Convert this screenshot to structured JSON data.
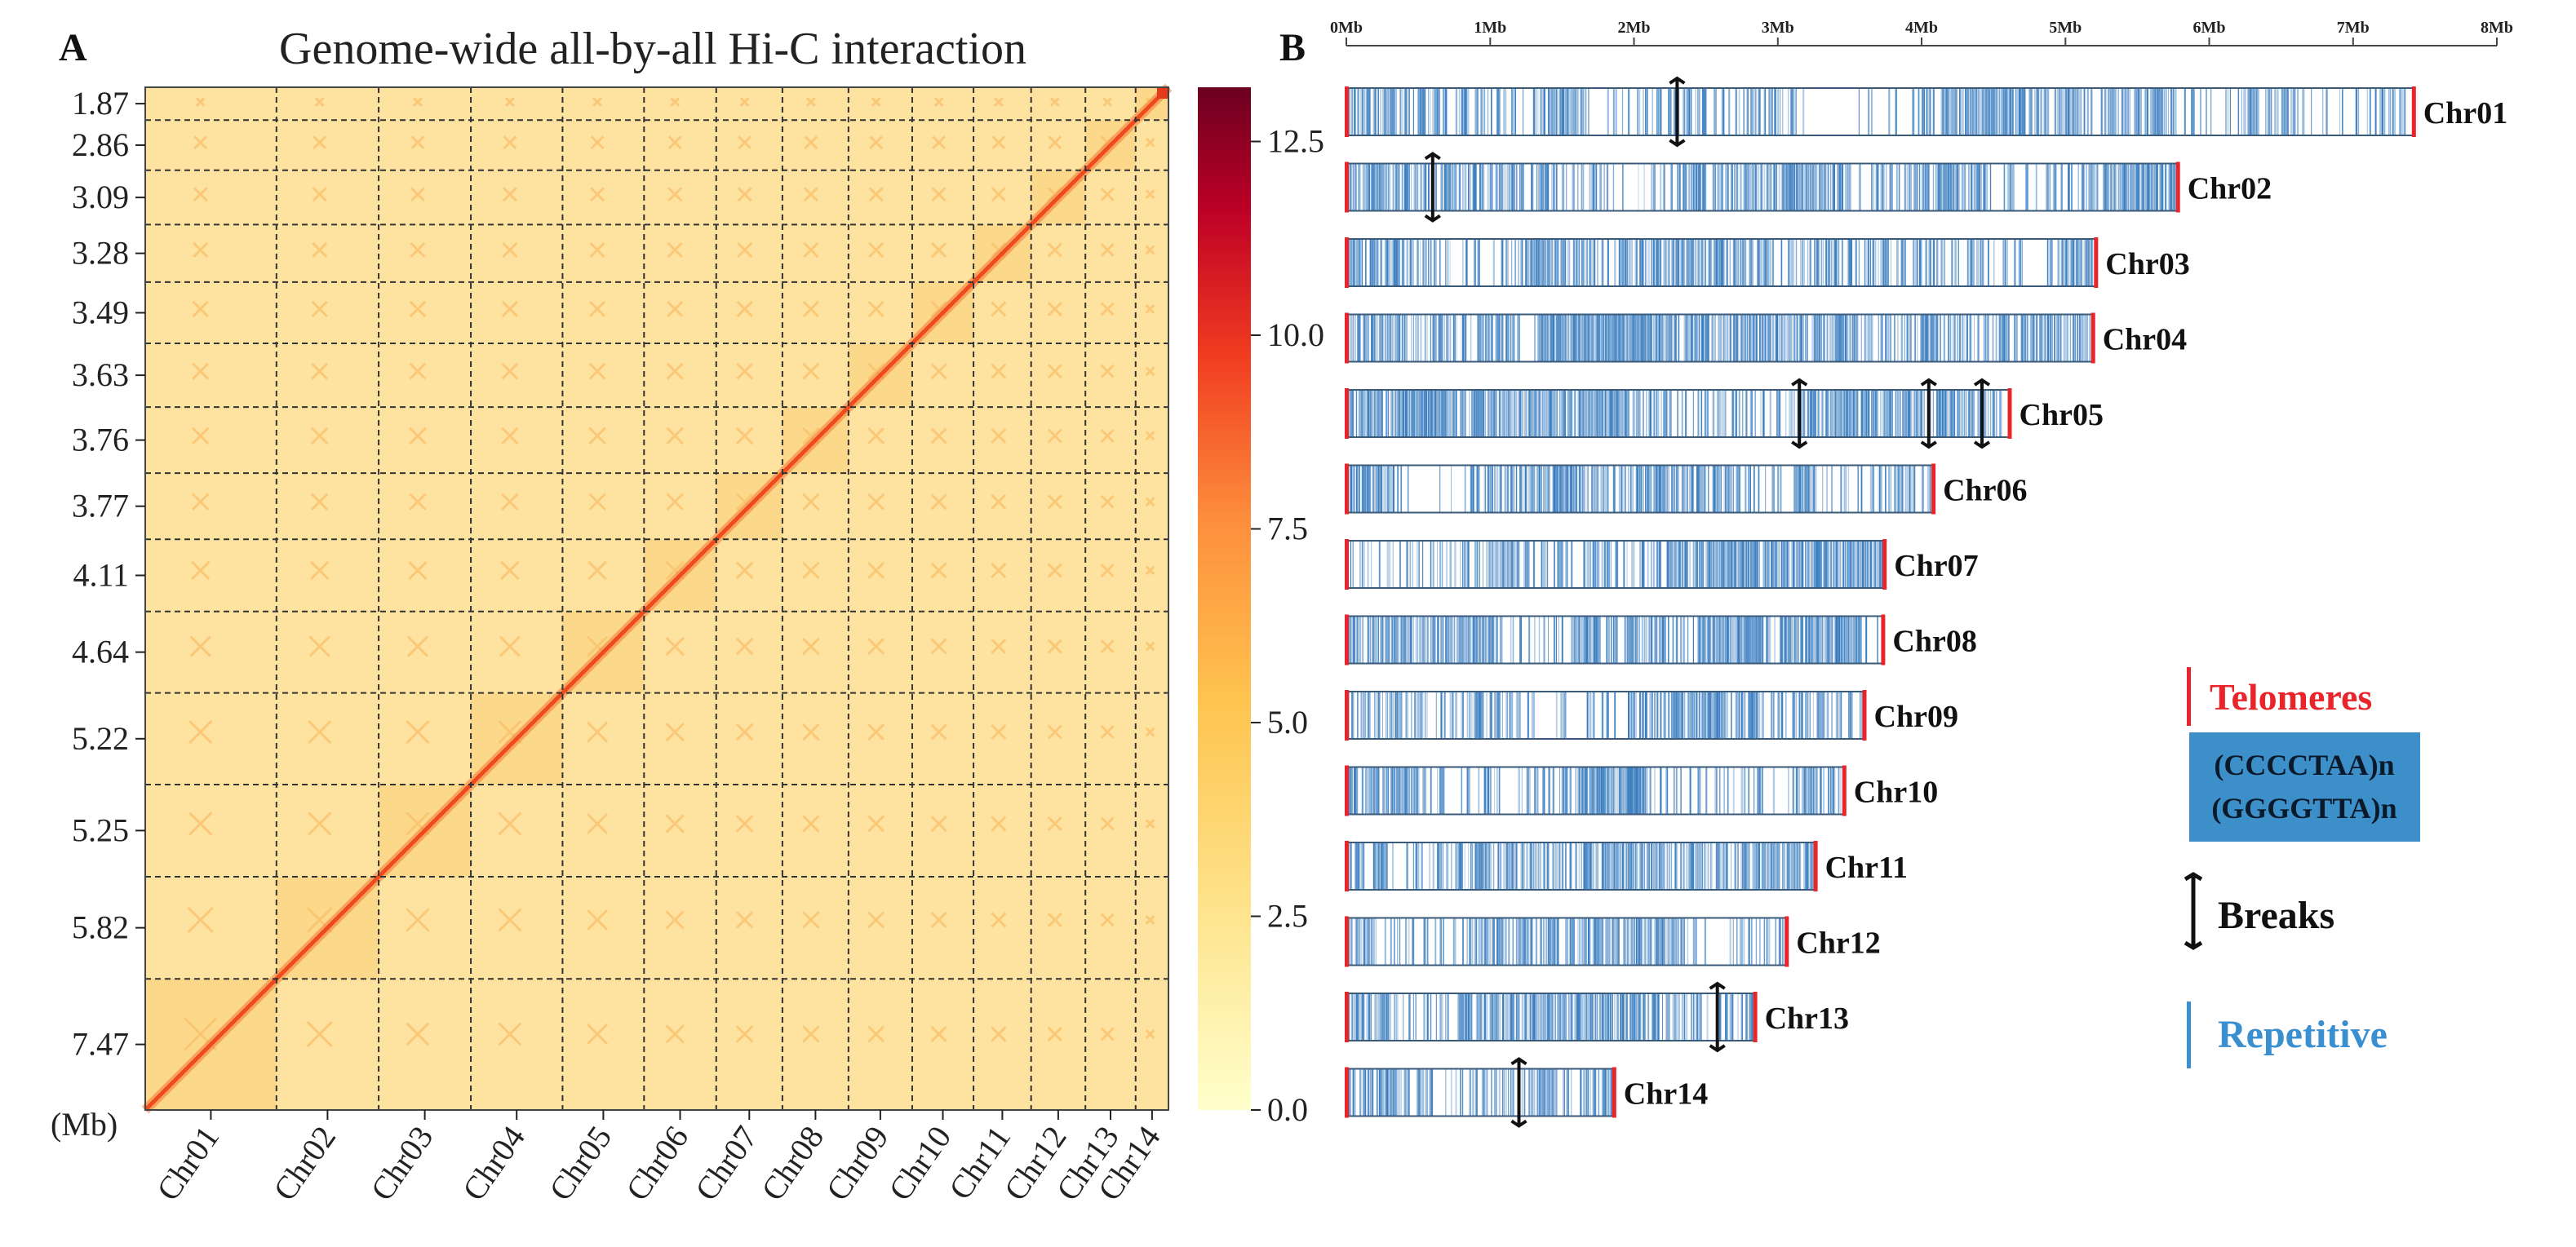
{
  "panel_a": {
    "letter": "A",
    "title": "Genome-wide all-by-all Hi-C interaction",
    "unit_label": "(Mb)"
  },
  "panel_b": {
    "letter": "B"
  },
  "colors": {
    "heat_low": "#fff7c0",
    "heat_mid": "#fd8d3c",
    "heat_high": "#e31a1c",
    "heat_max": "#800026",
    "repeat_blue": "#3a7dbf",
    "telomere_red": "#e8252a",
    "legend_box": "#3d8fc9",
    "repetitive_text": "#3a8fd0"
  },
  "chart_data": [
    {
      "type": "heatmap",
      "title": "Genome-wide all-by-all Hi-C interaction",
      "xlabel": "",
      "ylabel": "(Mb)",
      "x_tick_labels": [
        "Chr01",
        "Chr02",
        "Chr03",
        "Chr04",
        "Chr05",
        "Chr06",
        "Chr07",
        "Chr08",
        "Chr09",
        "Chr10",
        "Chr11",
        "Chr12",
        "Chr13",
        "Chr14"
      ],
      "y_tick_labels": [
        "1.87",
        "2.86",
        "3.09",
        "3.28",
        "3.49",
        "3.63",
        "3.76",
        "3.77",
        "4.11",
        "4.64",
        "5.22",
        "5.25",
        "5.82",
        "7.47"
      ],
      "chromosome_sizes_mb": [
        7.47,
        5.82,
        5.25,
        5.22,
        4.64,
        4.11,
        3.77,
        3.76,
        3.63,
        3.49,
        3.28,
        3.09,
        2.86,
        1.87
      ],
      "colorbar": {
        "range": [
          0.0,
          13.2
        ],
        "ticks": [
          0.0,
          2.5,
          5.0,
          7.5,
          10.0,
          12.5
        ],
        "tick_labels": [
          "0.0",
          "2.5",
          "5.0",
          "7.5",
          "10.0",
          "12.5"
        ]
      }
    },
    {
      "type": "bar",
      "orientation": "horizontal",
      "title": "",
      "x_tick_labels": [
        "0Mb",
        "1Mb",
        "2Mb",
        "3Mb",
        "4Mb",
        "5Mb",
        "6Mb",
        "7Mb",
        "8Mb"
      ],
      "xlim": [
        0,
        8
      ],
      "categories": [
        "Chr01",
        "Chr02",
        "Chr03",
        "Chr04",
        "Chr05",
        "Chr06",
        "Chr07",
        "Chr08",
        "Chr09",
        "Chr10",
        "Chr11",
        "Chr12",
        "Chr13",
        "Chr14"
      ],
      "lengths_mb": [
        7.42,
        5.78,
        5.21,
        5.19,
        4.61,
        4.08,
        3.74,
        3.73,
        3.6,
        3.46,
        3.26,
        3.06,
        2.84,
        1.86
      ],
      "telomere_start": [
        true,
        true,
        true,
        true,
        true,
        true,
        true,
        true,
        true,
        true,
        true,
        true,
        true,
        true
      ],
      "telomere_end": [
        true,
        true,
        true,
        true,
        true,
        true,
        true,
        true,
        true,
        true,
        true,
        true,
        true,
        true
      ],
      "breaks_mb": [
        [
          2.3
        ],
        [
          0.6
        ],
        [],
        [],
        [
          3.15,
          4.05,
          4.42
        ],
        [],
        [],
        [],
        [],
        [],
        [],
        [],
        [
          2.58
        ],
        [
          1.2
        ]
      ],
      "legend": {
        "telomeres": "Telomeres",
        "motif_1": "(CCCCTAA)n",
        "motif_2": "(GGGGTTA)n",
        "breaks": "Breaks",
        "repetitive": "Repetitive"
      }
    }
  ]
}
